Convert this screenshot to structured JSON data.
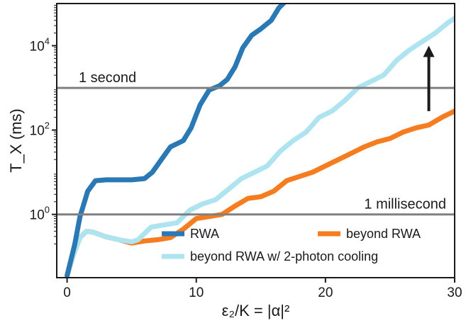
{
  "chart_data": {
    "type": "line",
    "xlabel": "ε₂/K = |α|²",
    "ylabel": "T_X (ms)",
    "xlim": [
      -0.8,
      30
    ],
    "ylim_log10": [
      -1.5,
      5
    ],
    "yscale": "log",
    "grid": false,
    "x_ticks": [
      {
        "value": 0,
        "label": "0"
      },
      {
        "value": 10,
        "label": "10"
      },
      {
        "value": 20,
        "label": "20"
      },
      {
        "value": 30,
        "label": "30"
      }
    ],
    "y_ticks": [
      {
        "exp": 0,
        "base": "10",
        "sup": "0"
      },
      {
        "exp": 2,
        "base": "10",
        "sup": "2"
      },
      {
        "exp": 4,
        "base": "10",
        "sup": "4"
      }
    ],
    "reference_lines": [
      {
        "name": "1 second",
        "log10_value": 3
      },
      {
        "name": "1 millisecond",
        "log10_value": 0
      }
    ],
    "series": [
      {
        "name": "RWA",
        "color": "#2a78b4",
        "x": [
          0,
          0.6,
          1.0,
          1.6,
          2.2,
          3.0,
          4.0,
          5.0,
          6.0,
          6.6,
          7.3,
          8.0,
          9.0,
          9.6,
          10.3,
          11.0,
          11.8,
          12.4,
          13.0,
          13.6,
          14.3,
          15.0,
          15.8,
          16.4,
          16.9
        ],
        "log10_y": [
          -1.45,
          -0.7,
          -0.05,
          0.55,
          0.8,
          0.82,
          0.82,
          0.82,
          0.85,
          1.0,
          1.3,
          1.6,
          1.75,
          2.05,
          2.6,
          2.95,
          3.05,
          3.2,
          3.5,
          3.95,
          4.25,
          4.4,
          4.6,
          4.9,
          5.05
        ]
      },
      {
        "name": "beyond RWA",
        "color": "#f57c1f",
        "x": [
          0,
          0.5,
          1.0,
          1.5,
          2.0,
          3.0,
          4.0,
          5.0,
          6.0,
          7.0,
          8.0,
          9.0,
          10.0,
          11.0,
          12.0,
          13.0,
          14.0,
          15.0,
          16.0,
          17.0,
          18.0,
          19.0,
          20.0,
          21.0,
          22.0,
          23.0,
          24.0,
          25.0,
          26.0,
          27.0,
          28.0,
          29.0,
          30.0
        ],
        "log10_y": [
          -1.45,
          -0.95,
          -0.55,
          -0.4,
          -0.42,
          -0.53,
          -0.6,
          -0.68,
          -0.63,
          -0.6,
          -0.55,
          -0.35,
          -0.1,
          -0.05,
          0.0,
          0.2,
          0.38,
          0.42,
          0.55,
          0.8,
          0.9,
          1.0,
          1.15,
          1.3,
          1.45,
          1.6,
          1.72,
          1.8,
          1.95,
          2.05,
          2.12,
          2.3,
          2.45
        ]
      },
      {
        "name": "beyond RWA w/ 2-photon cooling",
        "color": "#aee3f0",
        "x": [
          0,
          0.5,
          1.0,
          1.5,
          2.0,
          3.0,
          4.0,
          5.0,
          5.5,
          6.5,
          7.5,
          8.5,
          9.5,
          10.5,
          11.5,
          12.5,
          13.5,
          14.5,
          15.5,
          16.5,
          17.5,
          18.5,
          19.5,
          20.5,
          21.5,
          22.5,
          23.5,
          24.5,
          25.5,
          26.5,
          27.5,
          28.5,
          29.5,
          30.0
        ],
        "log10_y": [
          -1.45,
          -0.95,
          -0.55,
          -0.4,
          -0.42,
          -0.53,
          -0.6,
          -0.65,
          -0.6,
          -0.3,
          -0.25,
          -0.2,
          0.1,
          0.25,
          0.35,
          0.6,
          0.85,
          1.0,
          1.15,
          1.5,
          1.75,
          1.95,
          2.3,
          2.45,
          2.7,
          3.0,
          3.15,
          3.3,
          3.65,
          3.9,
          4.1,
          4.3,
          4.55,
          4.65
        ]
      }
    ],
    "legend": {
      "placement": "bottom-right",
      "entries": [
        "RWA",
        "beyond RWA",
        "beyond RWA w/ 2-photon cooling"
      ]
    },
    "annotations": [
      {
        "type": "arrow",
        "direction": "up",
        "color": "#1a1a1a",
        "x": 28,
        "log10_from": 2.45,
        "log10_to": 4.0
      }
    ]
  }
}
